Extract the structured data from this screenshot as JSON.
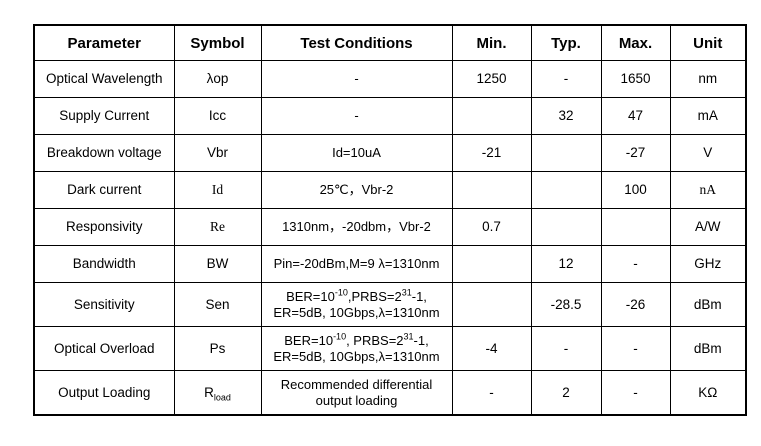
{
  "colors": {
    "background": "#ffffff",
    "border": "#000000",
    "text": "#000000"
  },
  "table": {
    "headers": [
      "Parameter",
      "Symbol",
      "Test Conditions",
      "Min.",
      "Typ.",
      "Max.",
      "Unit"
    ],
    "rows": [
      {
        "parameter": "Optical Wavelength",
        "symbol": "λop",
        "symbol_serif": false,
        "conditions": [
          "-"
        ],
        "min": "1250",
        "typ": "-",
        "max": "1650",
        "unit": "nm",
        "unit_serif": false
      },
      {
        "parameter": "Supply Current",
        "symbol": "Icc",
        "symbol_serif": false,
        "conditions": [
          "-"
        ],
        "min": "",
        "typ": "32",
        "max": "47",
        "unit": "mA",
        "unit_serif": false
      },
      {
        "parameter": "Breakdown voltage",
        "symbol": "Vbr",
        "symbol_serif": false,
        "conditions": [
          "Id=10uA"
        ],
        "min": "-21",
        "typ": "",
        "max": "-27",
        "unit": "V",
        "unit_serif": false
      },
      {
        "parameter": "Dark current",
        "symbol": "Id",
        "symbol_serif": true,
        "conditions": [
          "25℃，Vbr-2"
        ],
        "min": "",
        "typ": "",
        "max": "100",
        "unit": "nA",
        "unit_serif": true
      },
      {
        "parameter": "Responsivity",
        "symbol": "Re",
        "symbol_serif": true,
        "conditions": [
          "1310nm，-20dbm，Vbr-2"
        ],
        "min": "0.7",
        "typ": "",
        "max": "",
        "unit": "A/W",
        "unit_serif": false
      },
      {
        "parameter": "Bandwidth",
        "symbol": "BW",
        "symbol_serif": false,
        "conditions": [
          "Pin=-20dBm,M=9 λ=1310nm"
        ],
        "min": "",
        "typ": "12",
        "max": "-",
        "unit": "GHz",
        "unit_serif": false
      },
      {
        "parameter": "Sensitivity",
        "symbol": "Sen",
        "symbol_serif": false,
        "conditions": [
          "BER=10^{-10},PRBS=2^{31}-1,",
          "ER=5dB, 10Gbps,λ=1310nm"
        ],
        "min": "",
        "typ": "-28.5",
        "max": "-26",
        "unit": "dBm",
        "unit_serif": false
      },
      {
        "parameter": "Optical Overload",
        "symbol": "Ps",
        "symbol_serif": false,
        "conditions": [
          "BER=10^{-10}, PRBS=2^{31}-1,",
          "ER=5dB, 10Gbps,λ=1310nm"
        ],
        "min": "-4",
        "typ": "-",
        "max": "-",
        "unit": "dBm",
        "unit_serif": false
      },
      {
        "parameter": "Output Loading",
        "symbol": "R_{load}",
        "symbol_serif": false,
        "conditions": [
          "Recommended differential",
          "output loading"
        ],
        "min": "-",
        "typ": "2",
        "max": "-",
        "unit": "KΩ",
        "unit_serif": false
      }
    ]
  }
}
